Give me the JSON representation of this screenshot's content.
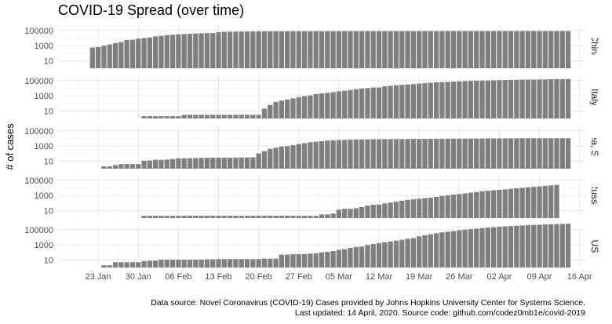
{
  "chart_data": {
    "type": "bar",
    "title": "COVID-19 Spread (over time)",
    "ylabel": "# of cases",
    "xlabel": "",
    "y_scale": "log10",
    "grid": true,
    "x_ticks": [
      "23 Jan",
      "30 Jan",
      "06 Feb",
      "13 Feb",
      "20 Feb",
      "27 Feb",
      "05 Mar",
      "12 Mar",
      "19 Mar",
      "26 Mar",
      "02 Apr",
      "09 Apr",
      "16 Apr"
    ],
    "y_ticks": [
      "10",
      "1000",
      "100000"
    ],
    "x_range": [
      "2020-01-16",
      "2020-04-17"
    ],
    "ylim": [
      1,
      400000
    ],
    "bar_color": "#7f7f7f",
    "panels": [
      {
        "name": "China",
        "start": "2020-01-22",
        "end": "2020-04-14",
        "values": [
          548,
          643,
          920,
          1406,
          2075,
          2877,
          5509,
          6087,
          8141,
          9802,
          11891,
          16630,
          19716,
          23707,
          27440,
          30587,
          34110,
          36814,
          39829,
          42354,
          44386,
          44759,
          59895,
          66358,
          68413,
          70513,
          72434,
          74211,
          74619,
          75077,
          75550,
          77001,
          77022,
          77241,
          77754,
          78166,
          78600,
          78928,
          79356,
          79932,
          80136,
          80261,
          80386,
          80537,
          80690,
          80770,
          80823,
          80860,
          80887,
          80921,
          80932,
          80945,
          80977,
          81003,
          81033,
          81058,
          81102,
          81156,
          81250,
          81305,
          81435,
          81498,
          81591,
          81661,
          81782,
          81897,
          81999,
          82122,
          82198,
          82279,
          82361,
          82432,
          82511,
          82543,
          82602,
          82665,
          82718,
          82809,
          82883,
          82941,
          83014,
          83134,
          83213,
          83306
        ]
      },
      {
        "name": "Italy",
        "start": "2020-01-31",
        "end": "2020-04-14",
        "values": [
          2,
          2,
          2,
          2,
          2,
          2,
          2,
          3,
          3,
          3,
          3,
          3,
          3,
          3,
          3,
          3,
          3,
          3,
          3,
          3,
          3,
          20,
          62,
          155,
          229,
          322,
          453,
          655,
          888,
          1128,
          1694,
          2036,
          2502,
          3089,
          3858,
          4636,
          5883,
          7375,
          9172,
          10149,
          12462,
          12462,
          17660,
          21157,
          24747,
          27980,
          31506,
          35713,
          41035,
          47021,
          53578,
          59138,
          63927,
          69176,
          74386,
          80589,
          86498,
          92472,
          97689,
          101739,
          105792,
          110574,
          115242,
          119827,
          124632,
          128948,
          132547,
          135586,
          139422,
          143626,
          147577,
          152271,
          156363,
          159516,
          162488
        ]
      },
      {
        "name": "Korea, South",
        "start": "2020-01-22",
        "end": "2020-04-14",
        "values": [
          1,
          1,
          2,
          2,
          3,
          4,
          4,
          4,
          4,
          11,
          12,
          15,
          15,
          16,
          19,
          23,
          24,
          24,
          25,
          27,
          28,
          28,
          28,
          28,
          28,
          29,
          30,
          31,
          31,
          104,
          204,
          433,
          602,
          833,
          977,
          1261,
          1766,
          2337,
          3150,
          3736,
          4335,
          5186,
          5621,
          6088,
          6593,
          7041,
          7314,
          7478,
          7513,
          7755,
          7869,
          7979,
          8086,
          8162,
          8236,
          8320,
          8413,
          8565,
          8652,
          8799,
          8897,
          8961,
          9037,
          9137,
          9241,
          9332,
          9478,
          9583,
          9661,
          9786,
          9887,
          9976,
          10062,
          10156,
          10237,
          10284,
          10331,
          10384,
          10423,
          10450,
          10480,
          10512,
          10537,
          10564
        ]
      },
      {
        "name": "Russia",
        "start": "2020-01-31",
        "end": "2020-04-14",
        "values": [
          2,
          2,
          2,
          2,
          2,
          2,
          2,
          2,
          2,
          2,
          2,
          2,
          2,
          2,
          2,
          2,
          2,
          2,
          2,
          2,
          2,
          2,
          2,
          2,
          2,
          2,
          2,
          2,
          2,
          2,
          2,
          3,
          3,
          4,
          13,
          17,
          17,
          20,
          28,
          45,
          59,
          63,
          90,
          114,
          147,
          199,
          253,
          306,
          367,
          438,
          495,
          658,
          840,
          1036,
          1264,
          1534,
          1836,
          2337,
          2777,
          3548,
          4149,
          4731,
          5389,
          6343,
          7497,
          8672,
          10131,
          11917,
          13584,
          15770,
          18328,
          21102,
          24490
        ]
      },
      {
        "name": "US",
        "start": "2020-01-22",
        "end": "2020-04-14",
        "values": [
          1,
          1,
          2,
          2,
          5,
          5,
          5,
          5,
          5,
          7,
          8,
          8,
          11,
          11,
          11,
          11,
          11,
          11,
          11,
          11,
          12,
          12,
          13,
          13,
          13,
          13,
          13,
          13,
          13,
          13,
          15,
          15,
          15,
          51,
          51,
          57,
          58,
          60,
          68,
          74,
          98,
          118,
          149,
          217,
          262,
          402,
          518,
          583,
          959,
          1281,
          1663,
          2179,
          2727,
          3499,
          4632,
          6421,
          7786,
          13680,
          19101,
          25493,
          33276,
          43847,
          53740,
          65778,
          83836,
          101657,
          121478,
          140886,
          161807,
          188172,
          213242,
          243622,
          275367,
          308650,
          336802,
          366317,
          397121,
          428654,
          462780,
          496535,
          526396,
          555313,
          580619,
          607670
        ]
      }
    ]
  },
  "caption": {
    "line1": "Data source: Novel Coronavirus (COVID-19) Cases provided by Johns Hopkins University Center for Systems Science.",
    "line2": "Last updated: 14 April, 2020. Source code: github.com/codez0mb1e/covid-2019"
  }
}
